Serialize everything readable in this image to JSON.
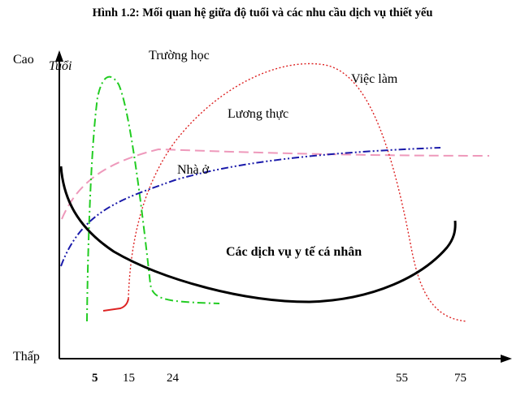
{
  "figure": {
    "title": "Hình 1.2: Mối quan hệ giữa độ tuổi và các nhu cầu dịch vụ thiết yếu",
    "y_axis": {
      "label": "Tuổi",
      "top_label": "Cao",
      "bottom_label": "Thấp"
    },
    "x_ticks": [
      "5",
      "15",
      "24",
      "55",
      "75"
    ],
    "curves": [
      {
        "name": "Trường học",
        "color": "#22cc22",
        "style": "dash-dot"
      },
      {
        "name": "Việc làm",
        "color": "#cc2222",
        "style": "dotted"
      },
      {
        "name": "Lương thực",
        "color": "#ee99bb",
        "style": "dashed"
      },
      {
        "name": "Nhà ở",
        "color": "#1a1aaa",
        "style": "dash-dot-dot"
      },
      {
        "name": "Các dịch vụ y tế cá nhân",
        "color": "#000000",
        "style": "solid"
      }
    ]
  }
}
